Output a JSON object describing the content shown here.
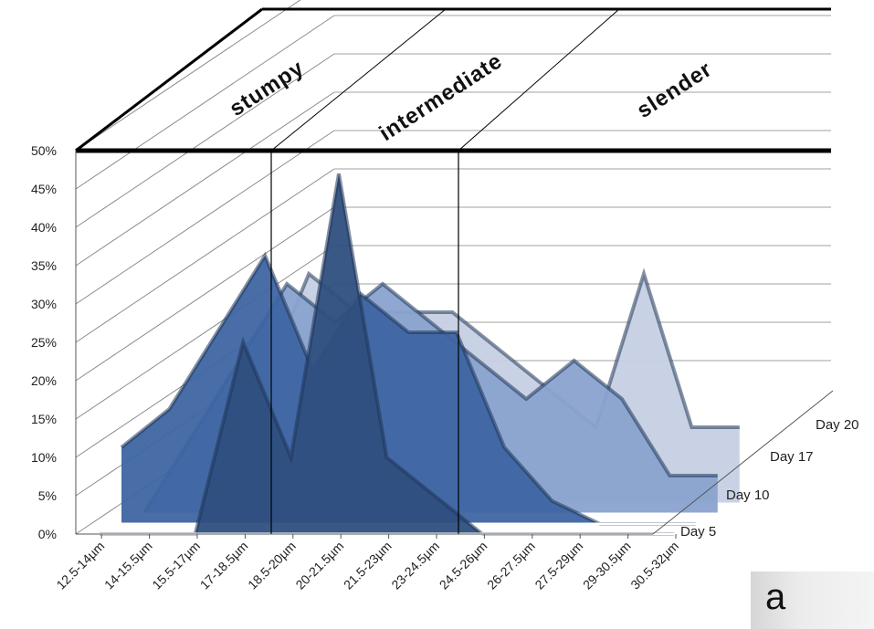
{
  "chart_data": {
    "type": "area",
    "style": "3d-stacked-depth",
    "categories": [
      "12.5-14µm",
      "14-15.5µm",
      "15.5-17µm",
      "17-18.5µm",
      "18.5-20µm",
      "20-21.5µm",
      "21.5-23µm",
      "23-24.5µm",
      "24.5-26µm",
      "26-27.5µm",
      "27.5-29µm",
      "29-30.5µm",
      "30.5-32µm"
    ],
    "yticks": [
      "0%",
      "5%",
      "10%",
      "15%",
      "20%",
      "25%",
      "30%",
      "35%",
      "40%",
      "45%",
      "50%"
    ],
    "ylim": [
      0,
      50
    ],
    "series": [
      {
        "name": "Day 5",
        "color": "#2f4f7e",
        "values": [
          0,
          0,
          0,
          25,
          10,
          47,
          10,
          5,
          0,
          0,
          0,
          0,
          0
        ]
      },
      {
        "name": "Day 10",
        "color": "#3e65a2",
        "values": [
          10,
          15,
          25,
          35,
          20,
          30,
          25,
          25,
          10,
          3,
          0,
          0,
          0
        ]
      },
      {
        "name": "Day 17",
        "color": "#8aa3cf",
        "values": [
          0,
          10,
          20,
          30,
          25,
          30,
          25,
          20,
          15,
          20,
          15,
          5,
          5
        ]
      },
      {
        "name": "Day 20",
        "color": "#c6d0e3",
        "values": [
          0,
          5,
          15,
          30,
          25,
          25,
          25,
          20,
          15,
          10,
          30,
          10,
          10
        ]
      }
    ],
    "zones": [
      "stumpy",
      "intermediate",
      "slender"
    ],
    "grid": true,
    "panel_label": "a"
  }
}
